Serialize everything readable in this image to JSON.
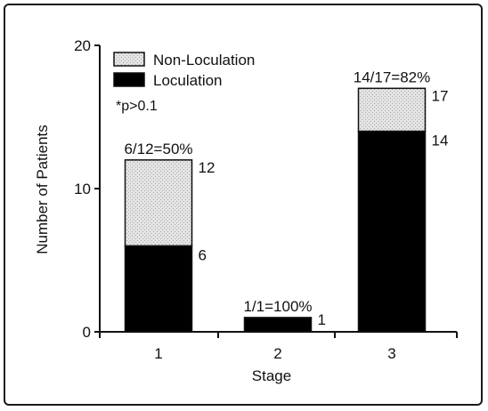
{
  "chart_data": {
    "type": "bar",
    "stacked": true,
    "categories": [
      "1",
      "2",
      "3"
    ],
    "series": [
      {
        "name": "Loculation",
        "values": [
          6,
          1,
          14
        ],
        "color": "#000000"
      },
      {
        "name": "Non-Loculation",
        "values": [
          6,
          0,
          3
        ],
        "color": "#e4e4e4"
      }
    ],
    "totals": [
      12,
      1,
      17
    ],
    "segment_labels": {
      "loculation": [
        "6",
        "1",
        "14"
      ],
      "total": [
        "12",
        "",
        "17"
      ]
    },
    "top_labels": [
      "6/12=50%",
      "1/1=100%",
      "14/17=82%"
    ],
    "xlabel": "Stage",
    "ylabel": "Number of Patients",
    "ylim": [
      0,
      20
    ],
    "yticks": [
      "0",
      "10",
      "20"
    ],
    "legend_placement": "top-left",
    "legend_note": "*p>0.1",
    "grid": false
  }
}
